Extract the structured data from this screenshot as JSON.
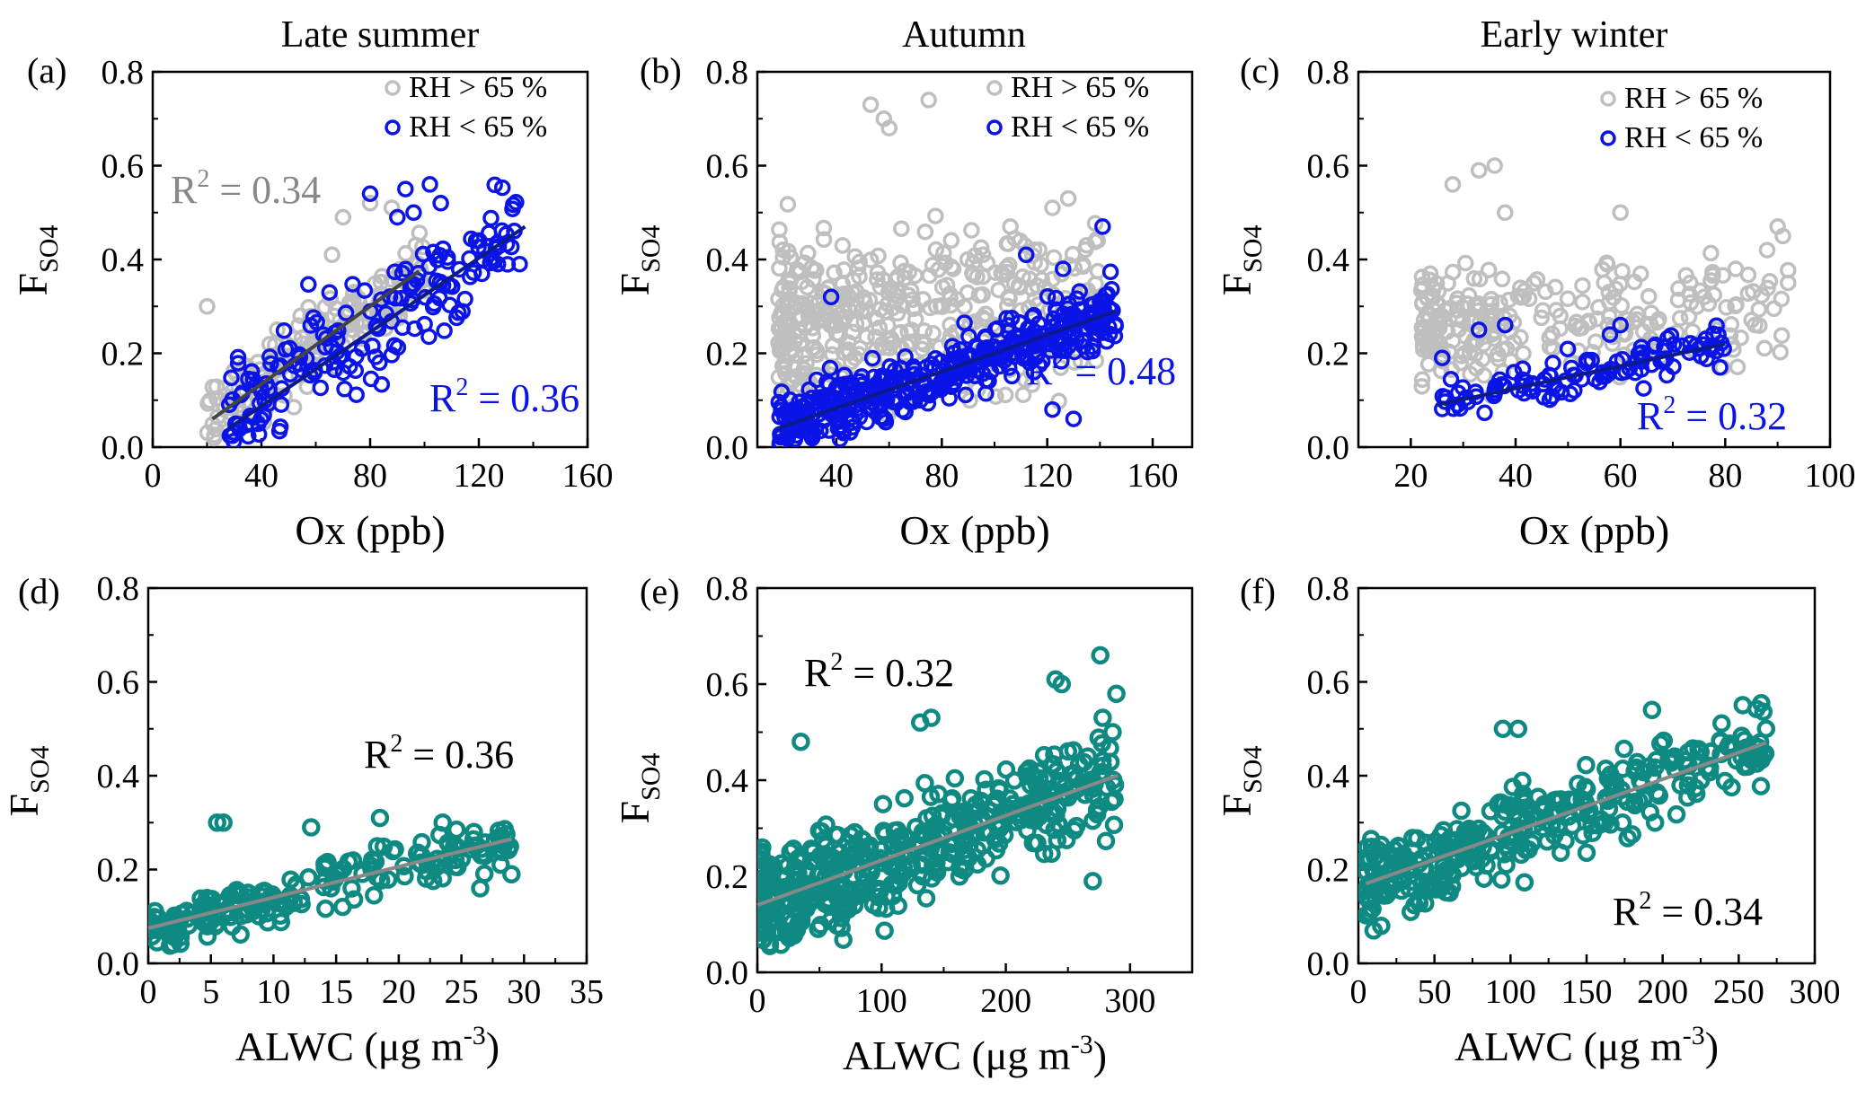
{
  "figure": {
    "column_titles": [
      "Late summer",
      "Autumn",
      "Early winter"
    ],
    "colors": {
      "high_rh": "#bfbfbf",
      "low_rh": "#0a14e6",
      "alwc": "#0f8a82",
      "fit_high_rh": "#444444",
      "fit_low_rh": "#0d1a8c",
      "fit_alwc": "#888888"
    }
  },
  "chart_data": [
    {
      "panel": "(a)",
      "type": "scatter",
      "title": "Late summer",
      "xlabel": "Ox (ppb)",
      "ylabel": "F",
      "ylabel_sub": "SO4",
      "xlim": [
        0,
        160
      ],
      "ylim": [
        0,
        0.8
      ],
      "xticks": [
        0,
        40,
        80,
        120,
        160
      ],
      "yticks": [
        0.0,
        0.2,
        0.4,
        0.6,
        0.8
      ],
      "xtick_labels": [
        "0",
        "40",
        "80",
        "120",
        "160"
      ],
      "ytick_labels": [
        "0.0",
        "0.2",
        "0.4",
        "0.6",
        "0.8"
      ],
      "legend": [
        "RH > 65 %",
        "RH < 65 %"
      ],
      "series": [
        {
          "name": "RH > 65 %",
          "color": "#bfbfbf",
          "n": 190,
          "x_range": [
            20,
            100
          ],
          "trend": [
            0.06,
            0.375
          ],
          "spread": 0.07,
          "fit": {
            "x": [
              22,
              98
            ],
            "y": [
              0.06,
              0.375
            ]
          },
          "r2": "R² = 0.34",
          "extra": [
            [
              20,
              0.3
            ],
            [
              88,
              0.51
            ],
            [
              80,
              0.52
            ],
            [
              70,
              0.49
            ],
            [
              66,
              0.41
            ]
          ]
        },
        {
          "name": "RH < 65 %",
          "color": "#0a14e6",
          "n": 170,
          "x_range": [
            28,
            136
          ],
          "trend": [
            0.06,
            0.47
          ],
          "spread": 0.11,
          "fit": {
            "x": [
              28,
              137
            ],
            "y": [
              0.04,
              0.47
            ]
          },
          "r2": "R² = 0.36",
          "extra": [
            [
              102,
              0.56
            ],
            [
              93,
              0.55
            ],
            [
              96,
              0.5
            ],
            [
              106,
              0.52
            ],
            [
              80,
              0.54
            ],
            [
              135,
              0.39
            ],
            [
              127,
              0.39
            ],
            [
              119,
              0.44
            ],
            [
              90,
              0.49
            ]
          ]
        }
      ],
      "r2_labels": [
        {
          "text": "R",
          "sup": "2",
          "rest": " = 0.34",
          "color": "#888888"
        },
        {
          "text": "R",
          "sup": "2",
          "rest": " = 0.36",
          "color": "#0a14e6"
        }
      ]
    },
    {
      "panel": "(b)",
      "type": "scatter",
      "title": "Autumn",
      "xlabel": "Ox (ppb)",
      "ylabel": "F",
      "ylabel_sub": "SO4",
      "xlim": [
        10,
        175
      ],
      "ylim": [
        0,
        0.8
      ],
      "xticks": [
        40,
        80,
        120,
        160
      ],
      "yticks": [
        0.0,
        0.2,
        0.4,
        0.6,
        0.8
      ],
      "xtick_labels": [
        "40",
        "80",
        "120",
        "160"
      ],
      "ytick_labels": [
        "0.0",
        "0.2",
        "0.4",
        "0.6",
        "0.8"
      ],
      "legend": [
        "RH > 65 %",
        "RH < 65 %"
      ],
      "series": [
        {
          "name": "RH > 65 %",
          "color": "#bfbfbf",
          "n": 430,
          "x_range": [
            18,
            140
          ],
          "trend": [
            0.26,
            0.3
          ],
          "spread": 0.16,
          "r2": "",
          "extra": [
            [
              53,
              0.73
            ],
            [
              75,
              0.74
            ],
            [
              58,
              0.7
            ],
            [
              60,
              0.68
            ],
            [
              128,
              0.53
            ],
            [
              122,
              0.51
            ],
            [
              106,
              0.47
            ]
          ]
        },
        {
          "name": "RH < 65 %",
          "color": "#0a14e6",
          "n": 420,
          "x_range": [
            18,
            146
          ],
          "trend": [
            0.04,
            0.29
          ],
          "spread": 0.06,
          "fit": {
            "x": [
              18,
              146
            ],
            "y": [
              0.04,
              0.29
            ]
          },
          "r2": "R² = 0.48",
          "extra": [
            [
              141,
              0.47
            ],
            [
              112,
              0.41
            ],
            [
              126,
              0.38
            ],
            [
              38,
              0.32
            ],
            [
              122,
              0.08
            ],
            [
              130,
              0.06
            ]
          ]
        }
      ],
      "r2_labels": [
        {
          "text": "R",
          "sup": "2",
          "rest": " = 0.48",
          "color": "#0a14e6"
        }
      ]
    },
    {
      "panel": "(c)",
      "type": "scatter",
      "title": "Early winter",
      "xlabel": "Ox (ppb)",
      "ylabel": "F",
      "ylabel_sub": "SO4",
      "xlim": [
        10,
        100
      ],
      "ylim": [
        0,
        0.8
      ],
      "xticks": [
        20,
        40,
        60,
        80,
        100
      ],
      "yticks": [
        0.0,
        0.2,
        0.4,
        0.6,
        0.8
      ],
      "xtick_labels": [
        "20",
        "40",
        "60",
        "80",
        "100"
      ],
      "ytick_labels": [
        "0.0",
        "0.2",
        "0.4",
        "0.6",
        "0.8"
      ],
      "legend": [
        "RH > 65 %",
        "RH < 65 %"
      ],
      "series": [
        {
          "name": "RH > 65 %",
          "color": "#bfbfbf",
          "n": 260,
          "x_range": [
            22,
            92
          ],
          "trend": [
            0.26,
            0.3
          ],
          "spread": 0.1,
          "r2": "",
          "extra": [
            [
              33,
              0.59
            ],
            [
              36,
              0.6
            ],
            [
              28,
              0.56
            ],
            [
              38,
              0.5
            ],
            [
              60,
              0.5
            ],
            [
              90,
              0.47
            ],
            [
              88,
              0.42
            ],
            [
              91,
              0.45
            ],
            [
              82,
              0.38
            ],
            [
              92,
              0.35
            ]
          ]
        },
        {
          "name": "RH < 65 %",
          "color": "#0a14e6",
          "n": 110,
          "x_range": [
            25,
            80
          ],
          "trend": [
            0.09,
            0.22
          ],
          "spread": 0.04,
          "fit": {
            "x": [
              25,
              80
            ],
            "y": [
              0.09,
              0.22
            ]
          },
          "r2": "R² = 0.32",
          "extra": [
            [
              60,
              0.26
            ],
            [
              58,
              0.24
            ],
            [
              79,
              0.17
            ],
            [
              75,
              0.21
            ],
            [
              38,
              0.26
            ],
            [
              26,
              0.19
            ],
            [
              33,
              0.25
            ]
          ]
        }
      ],
      "r2_labels": [
        {
          "text": "R",
          "sup": "2",
          "rest": " = 0.32",
          "color": "#0a14e6"
        }
      ]
    },
    {
      "panel": "(d)",
      "type": "scatter",
      "title": "",
      "xlabel": "ALWC (μg m",
      "xlabel_sup": "-3",
      "xlabel_end": ")",
      "ylabel": "F",
      "ylabel_sub": "SO4",
      "xlim": [
        0,
        35
      ],
      "ylim": [
        0,
        0.8
      ],
      "xticks": [
        0,
        5,
        10,
        15,
        20,
        25,
        30,
        35
      ],
      "yticks": [
        0.0,
        0.2,
        0.4,
        0.6,
        0.8
      ],
      "xtick_labels": [
        "0",
        "5",
        "10",
        "15",
        "20",
        "25",
        "30",
        "35"
      ],
      "ytick_labels": [
        "0.0",
        "0.2",
        "0.4",
        "0.6",
        "0.8"
      ],
      "series": [
        {
          "name": "",
          "color": "#0f8a82",
          "n": 190,
          "x_range": [
            0.3,
            29
          ],
          "trend": [
            0.075,
            0.265
          ],
          "spread": 0.05,
          "fit": {
            "x": [
              0,
              29
            ],
            "y": [
              0.075,
              0.265
            ]
          },
          "r2": "R² = 0.36",
          "extra": [
            [
              6,
              0.3
            ],
            [
              5.5,
              0.3
            ],
            [
              18.5,
              0.31
            ],
            [
              13,
              0.29
            ],
            [
              23.5,
              0.3
            ],
            [
              26,
              0.28
            ],
            [
              29,
              0.19
            ],
            [
              26.5,
              0.16
            ]
          ]
        }
      ],
      "r2_labels": [
        {
          "text": "R",
          "sup": "2",
          "rest": " = 0.36",
          "color": "#000000"
        }
      ]
    },
    {
      "panel": "(e)",
      "type": "scatter",
      "title": "",
      "xlabel": "ALWC (μg m",
      "xlabel_sup": "-3",
      "xlabel_end": ")",
      "ylabel": "F",
      "ylabel_sub": "SO4",
      "xlim": [
        0,
        350
      ],
      "ylim": [
        0,
        0.8
      ],
      "xticks": [
        0,
        100,
        200,
        300
      ],
      "yticks": [
        0.0,
        0.2,
        0.4,
        0.6,
        0.8
      ],
      "xtick_labels": [
        "0",
        "100",
        "200",
        "300"
      ],
      "ytick_labels": [
        "0.0",
        "0.2",
        "0.4",
        "0.6",
        "0.8"
      ],
      "series": [
        {
          "name": "",
          "color": "#0f8a82",
          "n": 480,
          "x_range": [
            1,
            290
          ],
          "trend": [
            0.14,
            0.41
          ],
          "spread": 0.1,
          "fit": {
            "x": [
              0,
              290
            ],
            "y": [
              0.14,
              0.41
            ]
          },
          "r2": "R² = 0.32",
          "extra": [
            [
              276,
              0.66
            ],
            [
              240,
              0.61
            ],
            [
              245,
              0.6
            ],
            [
              289,
              0.58
            ],
            [
              278,
              0.53
            ],
            [
              131,
              0.52
            ],
            [
              140,
              0.53
            ],
            [
              270,
              0.19
            ],
            [
              35,
              0.48
            ]
          ]
        }
      ],
      "r2_labels": [
        {
          "text": "R",
          "sup": "2",
          "rest": " = 0.32",
          "color": "#000000"
        }
      ]
    },
    {
      "panel": "(f)",
      "type": "scatter",
      "title": "",
      "xlabel": "ALWC (μg m",
      "xlabel_sup": "-3",
      "xlabel_end": ")",
      "ylabel": "F",
      "ylabel_sub": "SO4",
      "xlim": [
        0,
        300
      ],
      "ylim": [
        0,
        0.8
      ],
      "xticks": [
        0,
        50,
        100,
        150,
        200,
        250,
        300
      ],
      "yticks": [
        0.0,
        0.2,
        0.4,
        0.6,
        0.8
      ],
      "xtick_labels": [
        "0",
        "50",
        "100",
        "150",
        "200",
        "250",
        "300"
      ],
      "ytick_labels": [
        "0.0",
        "0.2",
        "0.4",
        "0.6",
        "0.8"
      ],
      "series": [
        {
          "name": "",
          "color": "#0f8a82",
          "n": 330,
          "x_range": [
            5,
            268
          ],
          "trend": [
            0.17,
            0.47
          ],
          "spread": 0.08,
          "fit": {
            "x": [
              5,
              268
            ],
            "y": [
              0.17,
              0.47
            ]
          },
          "r2": "R² = 0.34",
          "extra": [
            [
              193,
              0.54
            ],
            [
              268,
              0.5
            ],
            [
              95,
              0.5
            ],
            [
              105,
              0.5
            ],
            [
              255,
              0.46
            ],
            [
              247,
              0.46
            ],
            [
              225,
              0.39
            ],
            [
              195,
              0.3
            ],
            [
              10,
              0.07
            ],
            [
              15,
              0.08
            ]
          ]
        }
      ],
      "r2_labels": [
        {
          "text": "R",
          "sup": "2",
          "rest": " = 0.34",
          "color": "#000000"
        }
      ]
    }
  ]
}
